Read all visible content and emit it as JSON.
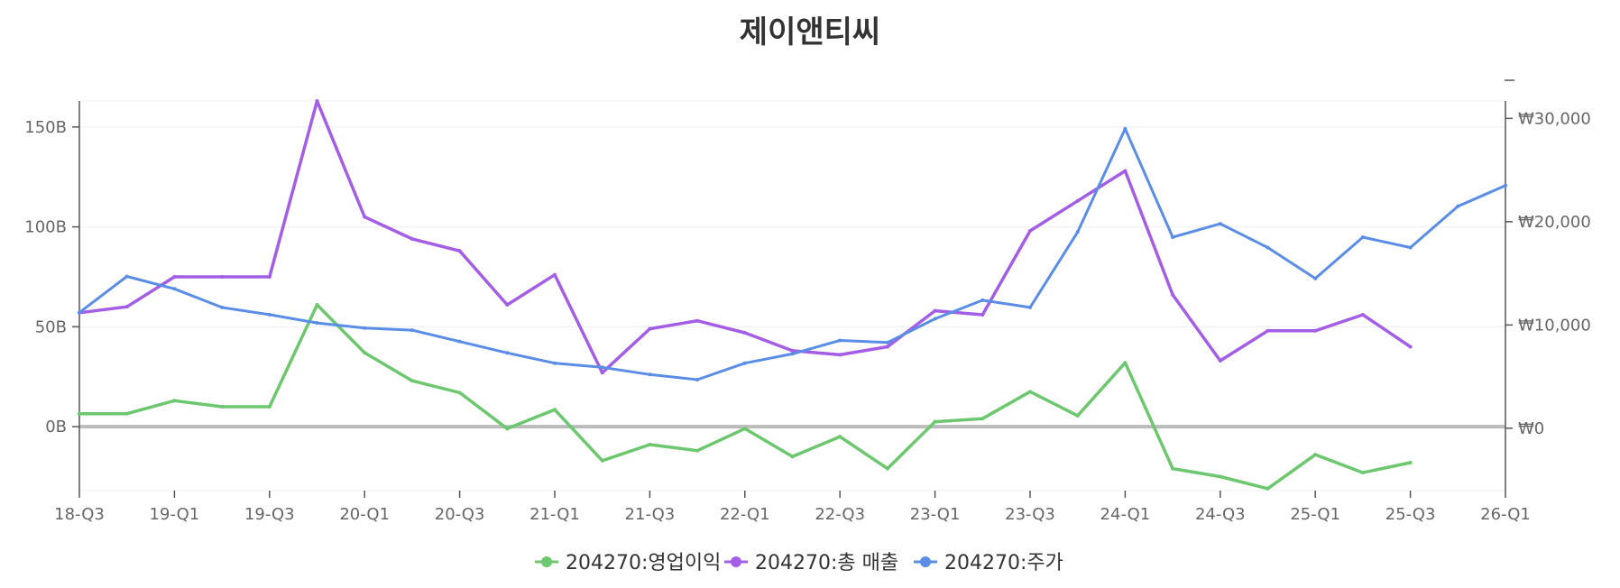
{
  "chart_data": {
    "type": "line",
    "title": "제이앤티씨",
    "x_ticks": [
      "18-Q3",
      "19-Q1",
      "19-Q3",
      "20-Q1",
      "20-Q3",
      "21-Q1",
      "21-Q3",
      "22-Q1",
      "22-Q3",
      "23-Q1",
      "23-Q3",
      "24-Q1",
      "24-Q3",
      "25-Q1",
      "25-Q3",
      "26-Q1"
    ],
    "y_left": {
      "ylim": [
        -32,
        163
      ],
      "ticks": [
        0,
        50,
        100,
        150
      ],
      "tick_labels": [
        "0B",
        "50B",
        "100B",
        "150B"
      ]
    },
    "y_right": {
      "ylim": [
        -6040,
        31690
      ],
      "ticks": [
        0,
        10000,
        20000,
        30000
      ],
      "tick_labels": [
        "₩0",
        "₩10,000",
        "₩20,000",
        "₩30,000"
      ]
    },
    "series": [
      {
        "name": "204270:영업이익",
        "axis": "left",
        "color": "#6cc76e",
        "x": [
          "18-Q3",
          "18-Q4",
          "19-Q1",
          "19-Q2",
          "19-Q3",
          "19-Q4",
          "20-Q1",
          "20-Q2",
          "20-Q3",
          "20-Q4",
          "21-Q1",
          "21-Q2",
          "21-Q3",
          "21-Q4",
          "22-Q1",
          "22-Q2",
          "22-Q3",
          "22-Q4",
          "23-Q1",
          "23-Q2",
          "23-Q3",
          "23-Q4",
          "24-Q1",
          "24-Q2",
          "24-Q3",
          "24-Q4",
          "25-Q1",
          "25-Q2",
          "25-Q3"
        ],
        "values": [
          6.5,
          6.5,
          13,
          10,
          10,
          61,
          37,
          23,
          17,
          -1,
          8.5,
          -17,
          -9,
          -12,
          -1,
          -15,
          -5,
          -21,
          2.5,
          4,
          17.5,
          5.5,
          32,
          -21,
          -25,
          -31,
          -14,
          -23,
          -18
        ]
      },
      {
        "name": "204270:총 매출",
        "axis": "left",
        "color": "#a45ee5",
        "x": [
          "18-Q3",
          "18-Q4",
          "19-Q1",
          "19-Q2",
          "19-Q3",
          "19-Q4",
          "20-Q1",
          "20-Q2",
          "20-Q3",
          "20-Q4",
          "21-Q1",
          "21-Q2",
          "21-Q3",
          "21-Q4",
          "22-Q1",
          "22-Q2",
          "22-Q3",
          "22-Q4",
          "23-Q1",
          "23-Q2",
          "23-Q3",
          "23-Q4",
          "24-Q1",
          "24-Q2",
          "24-Q3",
          "24-Q4",
          "25-Q1",
          "25-Q2",
          "25-Q3"
        ],
        "values": [
          57,
          60,
          75,
          75,
          75,
          163,
          105,
          94,
          88,
          61,
          76,
          27,
          49,
          53,
          47,
          38,
          36,
          40,
          58,
          56,
          98,
          113,
          128,
          66,
          33,
          48,
          48,
          56,
          40
        ]
      },
      {
        "name": "204270:주가",
        "axis": "right",
        "color": "#5a8de6",
        "x": [
          "18-Q3",
          "18-Q4",
          "19-Q1",
          "19-Q2",
          "19-Q3",
          "19-Q4",
          "20-Q1",
          "20-Q2",
          "20-Q3",
          "20-Q4",
          "21-Q1",
          "21-Q2",
          "21-Q3",
          "21-Q4",
          "22-Q1",
          "22-Q2",
          "22-Q3",
          "22-Q4",
          "23-Q1",
          "23-Q2",
          "23-Q3",
          "23-Q4",
          "24-Q1",
          "24-Q2",
          "24-Q3",
          "24-Q4",
          "25-Q1",
          "25-Q2",
          "25-Q3",
          "25-Q4",
          "26-Q1"
        ],
        "values": [
          11200,
          14700,
          13500,
          11700,
          11000,
          10200,
          9700,
          9500,
          8400,
          7300,
          6300,
          5900,
          5200,
          4700,
          6300,
          7200,
          8500,
          8300,
          10600,
          12400,
          11700,
          19000,
          29000,
          18500,
          19800,
          17500,
          14500,
          18500,
          17500,
          21500,
          23500
        ]
      }
    ],
    "legend": [
      "204270:영업이익",
      "204270:총 매출",
      "204270:주가"
    ],
    "grid": true,
    "legend_position": "bottom"
  }
}
